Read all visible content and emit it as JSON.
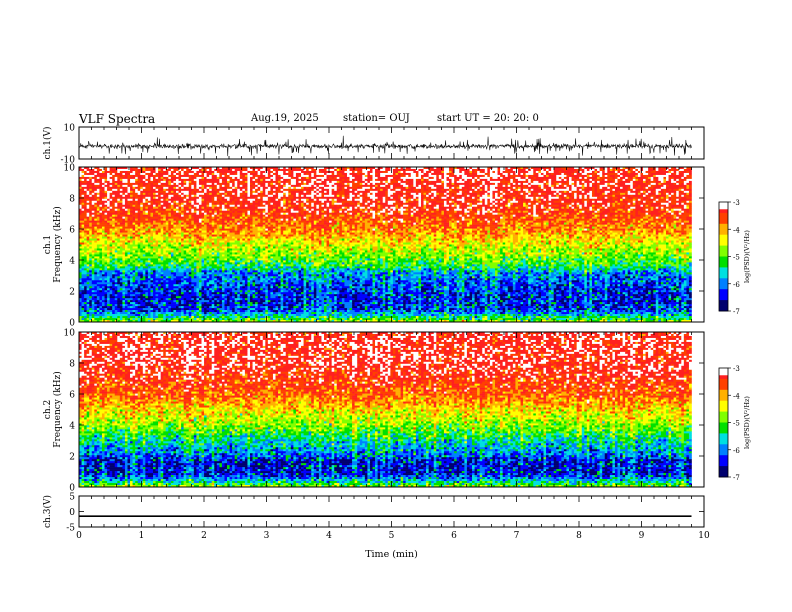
{
  "header": {
    "title": "VLF Spectra",
    "date": "Aug.19, 2025",
    "station": "station= OUJ",
    "start_ut": "start  UT =   20: 20: 0"
  },
  "colors": {
    "scale": [
      "#00006e",
      "#0000ff",
      "#0080ff",
      "#00e0e0",
      "#00e000",
      "#80ff00",
      "#ffff00",
      "#ffb000",
      "#ff4000",
      "#ff2020",
      "#ffffff"
    ]
  },
  "chart_data": [
    {
      "type": "line",
      "panel": "ch1-waveform",
      "ylabel": "ch.1(V)",
      "ylim": [
        -10,
        10
      ],
      "yticks": [
        "10",
        "-10"
      ],
      "xlim": [
        0,
        10
      ],
      "series": [
        {
          "name": "ch.1",
          "description": "noisy waveform centered near -2 V with frequent spikes"
        }
      ]
    },
    {
      "type": "heatmap",
      "panel": "ch1-spectrogram",
      "ylabel": "ch.1 Frequency (kHz)",
      "ylim": [
        0,
        10
      ],
      "yticks": [
        "0",
        "2",
        "4",
        "6",
        "8",
        "10"
      ],
      "xlim": [
        0,
        9.8
      ],
      "data_end_min": 9.8,
      "colorbar": {
        "label": "log(PSD)(V²/Hz)",
        "range": [
          -7,
          -3
        ],
        "ticks": [
          "-3",
          "-4",
          "-5",
          "-6",
          "-7"
        ]
      },
      "profile_kHz_to_logPSD": [
        [
          0.0,
          -4.8
        ],
        [
          0.4,
          -5.6
        ],
        [
          0.8,
          -6.4
        ],
        [
          1.6,
          -6.5
        ],
        [
          2.4,
          -6.3
        ],
        [
          3.2,
          -6.0
        ],
        [
          3.6,
          -5.3
        ],
        [
          4.2,
          -4.9
        ],
        [
          5.0,
          -4.5
        ],
        [
          6.0,
          -3.9
        ],
        [
          7.0,
          -3.5
        ],
        [
          8.0,
          -3.3
        ],
        [
          10.0,
          -3.2
        ]
      ]
    },
    {
      "type": "heatmap",
      "panel": "ch2-spectrogram",
      "ylabel": "ch.2 Frequency (kHz)",
      "ylim": [
        0,
        10
      ],
      "yticks": [
        "0",
        "2",
        "4",
        "6",
        "8",
        "10"
      ],
      "xlim": [
        0,
        9.8
      ],
      "data_end_min": 9.8,
      "colorbar": {
        "label": "log(PSD)(V²/Hz)",
        "range": [
          -7,
          -3
        ],
        "ticks": [
          "-3",
          "-4",
          "-5",
          "-6",
          "-7"
        ]
      },
      "profile_kHz_to_logPSD": [
        [
          0.0,
          -4.8
        ],
        [
          0.4,
          -5.7
        ],
        [
          0.8,
          -6.5
        ],
        [
          1.6,
          -6.6
        ],
        [
          2.0,
          -6.2
        ],
        [
          3.0,
          -5.6
        ],
        [
          3.6,
          -5.1
        ],
        [
          4.2,
          -4.7
        ],
        [
          5.0,
          -4.3
        ],
        [
          6.0,
          -3.7
        ],
        [
          7.0,
          -3.4
        ],
        [
          8.0,
          -3.2
        ],
        [
          10.0,
          -3.2
        ]
      ]
    },
    {
      "type": "line",
      "panel": "ch3-waveform",
      "ylabel": "ch.3(V)",
      "ylim": [
        -5,
        5
      ],
      "yticks": [
        "5",
        "0",
        "-5"
      ],
      "xlim": [
        0,
        10
      ],
      "series": [
        {
          "name": "ch.3",
          "constant_value": -1.5
        }
      ]
    }
  ],
  "xaxis": {
    "label": "Time  (min)",
    "range": [
      0,
      10
    ],
    "ticks": [
      "0",
      "1",
      "2",
      "3",
      "4",
      "5",
      "6",
      "7",
      "8",
      "9",
      "10"
    ]
  }
}
